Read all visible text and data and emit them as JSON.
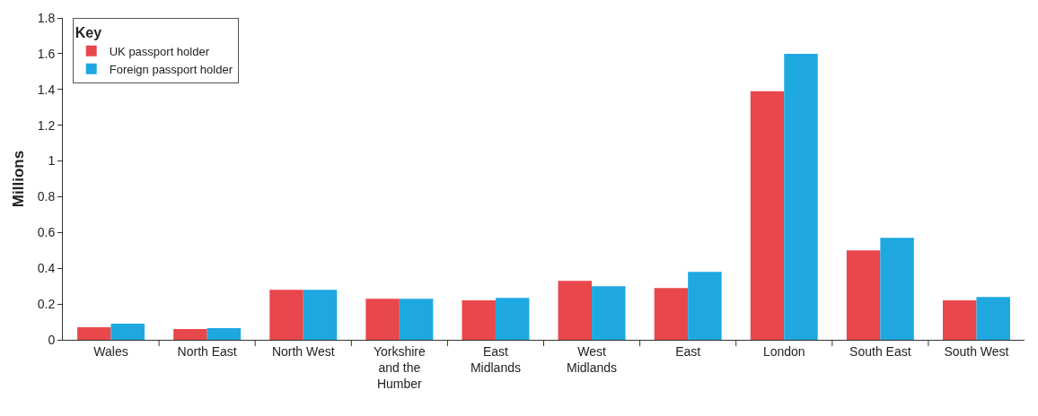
{
  "chart_data": {
    "type": "bar",
    "ylabel": "Millions",
    "legend_title": "Key",
    "legend": "top left",
    "grid": false,
    "categories": [
      "Wales",
      "North East",
      "North West",
      "Yorkshire and the Humber",
      "East Midlands",
      "West Midlands",
      "East",
      "London",
      "South East",
      "South West"
    ],
    "series": [
      {
        "name": "UK passport holder",
        "color": "#e8474c",
        "values": [
          0.07,
          0.06,
          0.28,
          0.23,
          0.22,
          0.33,
          0.29,
          1.39,
          0.5,
          0.22
        ]
      },
      {
        "name": "Foreign passport holder",
        "color": "#1fa8e0",
        "values": [
          0.09,
          0.065,
          0.28,
          0.23,
          0.235,
          0.3,
          0.38,
          1.6,
          0.57,
          0.24
        ]
      }
    ],
    "ylim": [
      0,
      1.8
    ],
    "yticks": [
      0,
      0.2,
      0.4,
      0.6,
      0.8,
      1,
      1.2,
      1.4,
      1.6,
      1.8
    ]
  }
}
